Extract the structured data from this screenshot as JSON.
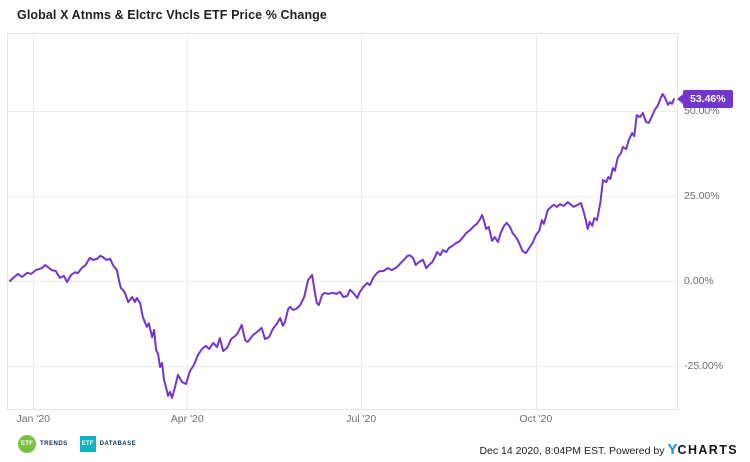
{
  "header": {
    "title": "Global X Atnms & Elctrc Vhcls ETF Price % Change"
  },
  "chart_data": {
    "type": "line",
    "title": "Global X Atnms & Elctrc Vhcls ETF Price % Change",
    "grid": true,
    "legend": "none",
    "x_axis": {
      "unit": "date, plotted as fraction of range Jan 2 2020 - Dec 14 2020",
      "range": [
        0,
        1
      ],
      "ticks": [
        {
          "t": 0.035,
          "label": "Jan '20"
        },
        {
          "t": 0.267,
          "label": "Apr '20"
        },
        {
          "t": 0.529,
          "label": "Jul '20"
        },
        {
          "t": 0.792,
          "label": "Oct '20"
        }
      ]
    },
    "y_axis": {
      "unit": "price % change",
      "side": "right",
      "range": [
        -37.5,
        73
      ],
      "ticks": [
        {
          "value": 50,
          "label": "50.00%"
        },
        {
          "value": 25,
          "label": "25.00%"
        },
        {
          "value": 0,
          "label": "0.00%"
        },
        {
          "value": -25,
          "label": "-25.00%"
        }
      ]
    },
    "series": [
      {
        "name": "Global X Atnms & Elctrc Vhcls ETF",
        "color": "#7335CB",
        "last_value": 53.46,
        "last_label": "53.46%",
        "points": [
          [
            0.0,
            0.0
          ],
          [
            0.005,
            0.9
          ],
          [
            0.012,
            2.1
          ],
          [
            0.018,
            1.2
          ],
          [
            0.026,
            2.4
          ],
          [
            0.032,
            2.1
          ],
          [
            0.039,
            3.2
          ],
          [
            0.048,
            3.8
          ],
          [
            0.053,
            4.7
          ],
          [
            0.057,
            4.1
          ],
          [
            0.063,
            3.2
          ],
          [
            0.069,
            2.9
          ],
          [
            0.075,
            0.9
          ],
          [
            0.081,
            1.5
          ],
          [
            0.086,
            -0.3
          ],
          [
            0.092,
            1.8
          ],
          [
            0.098,
            2.6
          ],
          [
            0.102,
            2.3
          ],
          [
            0.108,
            3.8
          ],
          [
            0.114,
            4.7
          ],
          [
            0.12,
            6.8
          ],
          [
            0.125,
            6.2
          ],
          [
            0.131,
            6.5
          ],
          [
            0.136,
            7.4
          ],
          [
            0.14,
            7.0
          ],
          [
            0.145,
            6.2
          ],
          [
            0.151,
            6.5
          ],
          [
            0.155,
            4.7
          ],
          [
            0.161,
            3.2
          ],
          [
            0.164,
            0.3
          ],
          [
            0.167,
            -2.1
          ],
          [
            0.17,
            -2.6
          ],
          [
            0.173,
            -3.5
          ],
          [
            0.178,
            -6.2
          ],
          [
            0.184,
            -4.7
          ],
          [
            0.188,
            -6.2
          ],
          [
            0.191,
            -5.0
          ],
          [
            0.196,
            -6.5
          ],
          [
            0.2,
            -10.6
          ],
          [
            0.206,
            -13.5
          ],
          [
            0.209,
            -12.4
          ],
          [
            0.214,
            -16.5
          ],
          [
            0.217,
            -14.4
          ],
          [
            0.22,
            -20.3
          ],
          [
            0.223,
            -21.5
          ],
          [
            0.226,
            -25.3
          ],
          [
            0.229,
            -24.1
          ],
          [
            0.232,
            -29.1
          ],
          [
            0.235,
            -31.2
          ],
          [
            0.238,
            -33.8
          ],
          [
            0.241,
            -32.6
          ],
          [
            0.244,
            -34.4
          ],
          [
            0.248,
            -31.5
          ],
          [
            0.253,
            -27.6
          ],
          [
            0.259,
            -29.7
          ],
          [
            0.265,
            -30.3
          ],
          [
            0.271,
            -26.5
          ],
          [
            0.277,
            -24.7
          ],
          [
            0.283,
            -21.8
          ],
          [
            0.289,
            -20.0
          ],
          [
            0.295,
            -19.1
          ],
          [
            0.3,
            -20.0
          ],
          [
            0.306,
            -18.2
          ],
          [
            0.312,
            -19.4
          ],
          [
            0.316,
            -16.8
          ],
          [
            0.321,
            -20.6
          ],
          [
            0.327,
            -19.7
          ],
          [
            0.333,
            -17.1
          ],
          [
            0.339,
            -16.2
          ],
          [
            0.343,
            -15.3
          ],
          [
            0.349,
            -12.9
          ],
          [
            0.354,
            -17.4
          ],
          [
            0.358,
            -17.9
          ],
          [
            0.366,
            -15.9
          ],
          [
            0.372,
            -15.0
          ],
          [
            0.379,
            -13.8
          ],
          [
            0.384,
            -17.1
          ],
          [
            0.39,
            -16.5
          ],
          [
            0.396,
            -14.1
          ],
          [
            0.402,
            -12.6
          ],
          [
            0.407,
            -10.9
          ],
          [
            0.411,
            -13.2
          ],
          [
            0.414,
            -12.1
          ],
          [
            0.419,
            -8.2
          ],
          [
            0.422,
            -7.6
          ],
          [
            0.426,
            -8.5
          ],
          [
            0.431,
            -8.2
          ],
          [
            0.437,
            -7.1
          ],
          [
            0.443,
            -4.7
          ],
          [
            0.449,
            0.3
          ],
          [
            0.455,
            1.8
          ],
          [
            0.459,
            -3.2
          ],
          [
            0.462,
            -6.5
          ],
          [
            0.465,
            -7.1
          ],
          [
            0.47,
            -4.1
          ],
          [
            0.474,
            -3.5
          ],
          [
            0.479,
            -3.8
          ],
          [
            0.486,
            -3.5
          ],
          [
            0.492,
            -3.8
          ],
          [
            0.497,
            -3.2
          ],
          [
            0.502,
            -4.7
          ],
          [
            0.508,
            -4.4
          ],
          [
            0.512,
            -2.6
          ],
          [
            0.517,
            -3.5
          ],
          [
            0.523,
            -5.0
          ],
          [
            0.527,
            -3.2
          ],
          [
            0.532,
            -1.8
          ],
          [
            0.538,
            -0.6
          ],
          [
            0.542,
            -1.2
          ],
          [
            0.547,
            0.9
          ],
          [
            0.553,
            2.4
          ],
          [
            0.557,
            2.9
          ],
          [
            0.562,
            2.9
          ],
          [
            0.569,
            3.8
          ],
          [
            0.575,
            3.2
          ],
          [
            0.583,
            4.1
          ],
          [
            0.587,
            5.0
          ],
          [
            0.593,
            6.2
          ],
          [
            0.598,
            7.3
          ],
          [
            0.602,
            7.6
          ],
          [
            0.607,
            6.8
          ],
          [
            0.611,
            4.7
          ],
          [
            0.616,
            5.6
          ],
          [
            0.622,
            6.2
          ],
          [
            0.627,
            3.8
          ],
          [
            0.631,
            4.7
          ],
          [
            0.636,
            5.6
          ],
          [
            0.64,
            7.1
          ],
          [
            0.643,
            8.5
          ],
          [
            0.648,
            7.6
          ],
          [
            0.652,
            9.1
          ],
          [
            0.657,
            8.5
          ],
          [
            0.661,
            9.7
          ],
          [
            0.666,
            10.3
          ],
          [
            0.672,
            11.2
          ],
          [
            0.676,
            11.5
          ],
          [
            0.681,
            12.6
          ],
          [
            0.687,
            14.1
          ],
          [
            0.693,
            15.0
          ],
          [
            0.699,
            16.2
          ],
          [
            0.703,
            16.8
          ],
          [
            0.708,
            18.2
          ],
          [
            0.711,
            19.4
          ],
          [
            0.714,
            17.6
          ],
          [
            0.717,
            15.3
          ],
          [
            0.721,
            15.9
          ],
          [
            0.726,
            11.8
          ],
          [
            0.73,
            12.9
          ],
          [
            0.735,
            11.5
          ],
          [
            0.739,
            14.1
          ],
          [
            0.744,
            16.2
          ],
          [
            0.748,
            17.1
          ],
          [
            0.753,
            15.9
          ],
          [
            0.757,
            14.1
          ],
          [
            0.762,
            12.9
          ],
          [
            0.766,
            11.5
          ],
          [
            0.772,
            8.8
          ],
          [
            0.777,
            8.2
          ],
          [
            0.781,
            9.4
          ],
          [
            0.787,
            11.2
          ],
          [
            0.792,
            13.5
          ],
          [
            0.797,
            14.7
          ],
          [
            0.801,
            17.9
          ],
          [
            0.804,
            16.8
          ],
          [
            0.81,
            20.9
          ],
          [
            0.815,
            21.8
          ],
          [
            0.819,
            22.4
          ],
          [
            0.824,
            21.8
          ],
          [
            0.828,
            22.6
          ],
          [
            0.834,
            22.1
          ],
          [
            0.84,
            23.2
          ],
          [
            0.845,
            22.4
          ],
          [
            0.849,
            21.8
          ],
          [
            0.855,
            22.4
          ],
          [
            0.86,
            22.9
          ],
          [
            0.864,
            20.3
          ],
          [
            0.867,
            18.0
          ],
          [
            0.87,
            15.3
          ],
          [
            0.873,
            17.4
          ],
          [
            0.877,
            16.2
          ],
          [
            0.88,
            18.5
          ],
          [
            0.884,
            17.9
          ],
          [
            0.889,
            22.9
          ],
          [
            0.893,
            29.7
          ],
          [
            0.898,
            29.1
          ],
          [
            0.901,
            30.6
          ],
          [
            0.904,
            30.0
          ],
          [
            0.908,
            33.2
          ],
          [
            0.911,
            32.4
          ],
          [
            0.915,
            36.2
          ],
          [
            0.92,
            37.6
          ],
          [
            0.923,
            39.4
          ],
          [
            0.928,
            38.8
          ],
          [
            0.932,
            41.5
          ],
          [
            0.937,
            43.5
          ],
          [
            0.94,
            42.6
          ],
          [
            0.944,
            48.8
          ],
          [
            0.949,
            48.2
          ],
          [
            0.953,
            49.4
          ],
          [
            0.958,
            46.8
          ],
          [
            0.962,
            46.5
          ],
          [
            0.967,
            48.5
          ],
          [
            0.971,
            50.3
          ],
          [
            0.976,
            51.8
          ],
          [
            0.98,
            53.8
          ],
          [
            0.983,
            55.0
          ],
          [
            0.986,
            54.1
          ],
          [
            0.991,
            51.8
          ],
          [
            0.994,
            52.6
          ],
          [
            0.997,
            52.1
          ],
          [
            1.0,
            53.46
          ]
        ]
      }
    ]
  },
  "footer": {
    "logos": [
      {
        "name": "ETF Trends",
        "icon_text": "ETF",
        "label": "TRENDS",
        "color": "#7AC143",
        "shape": "circle"
      },
      {
        "name": "ETF Database",
        "icon_text": "ETF",
        "label": "DATABASE",
        "color": "#12B2C4",
        "shape": "square"
      }
    ],
    "timestamp": "Dec 14 2020, 8:04PM EST. Powered by",
    "ycharts": {
      "y": "Y",
      "charts": "CHARTS",
      "y_color": "#0e93e6"
    }
  }
}
